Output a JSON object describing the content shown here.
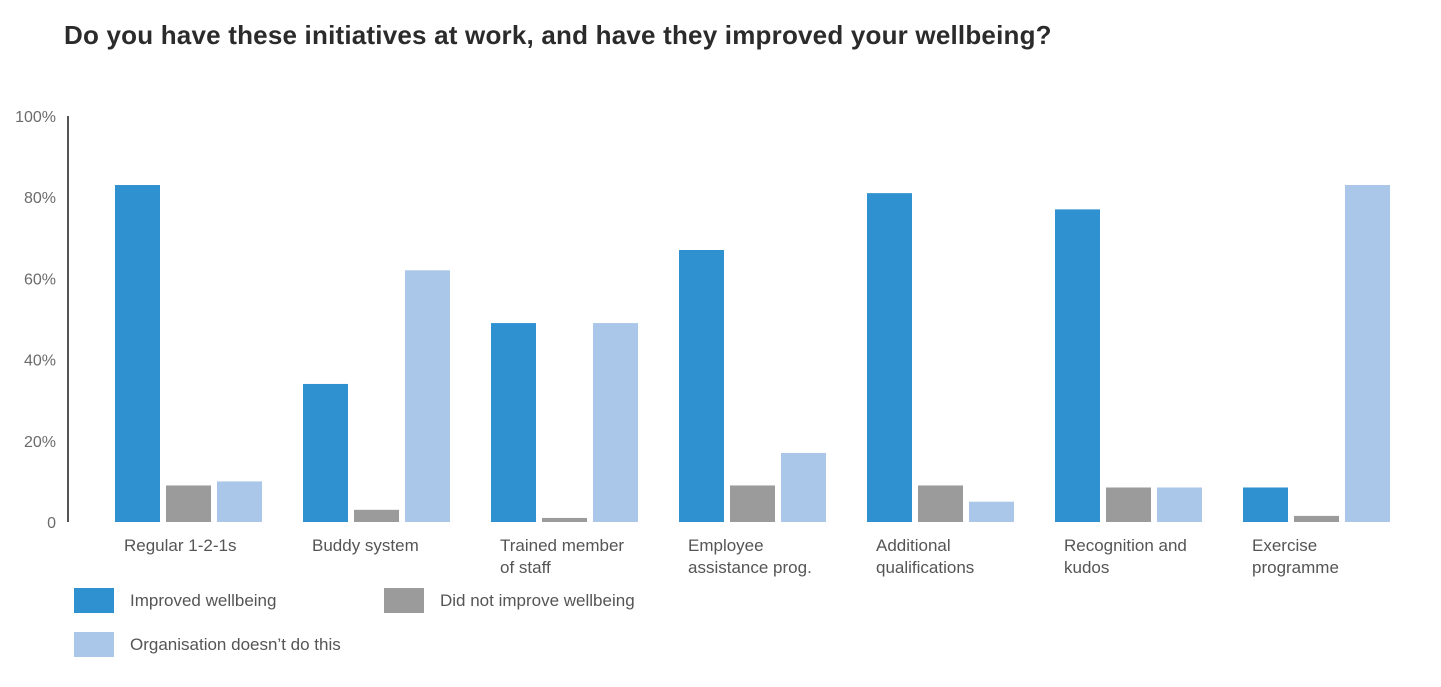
{
  "chart_data": {
    "type": "bar",
    "title": "Do you have these initiatives at work, and have they improved your wellbeing?",
    "xlabel": "",
    "ylabel": "",
    "ylim": [
      0,
      100
    ],
    "yticks": [
      0,
      20,
      40,
      60,
      80,
      100
    ],
    "ytick_labels": [
      "0",
      "20%",
      "40%",
      "60%",
      "80%",
      "100%"
    ],
    "categories": [
      [
        "Regular 1-2-1s"
      ],
      [
        "Buddy system"
      ],
      [
        "Trained member",
        "of staff"
      ],
      [
        "Employee",
        "assistance prog."
      ],
      [
        "Additional",
        "qualifications"
      ],
      [
        "Recognition and",
        "kudos"
      ],
      [
        "Exercise",
        "programme"
      ]
    ],
    "series": [
      {
        "name": "Improved wellbeing",
        "color": "#2f91d0",
        "values": [
          83,
          34,
          49,
          67,
          81,
          77,
          8.5
        ]
      },
      {
        "name": "Did not improve wellbeing",
        "color": "#9b9b9b",
        "values": [
          9,
          3,
          1,
          9,
          9,
          8.5,
          1.5
        ]
      },
      {
        "name": "Organisation doesn’t do this",
        "color": "#aac6e8",
        "values": [
          10,
          62,
          49,
          17,
          5,
          8.5,
          83
        ]
      }
    ],
    "grid": false,
    "legend_position": "bottom-left"
  }
}
